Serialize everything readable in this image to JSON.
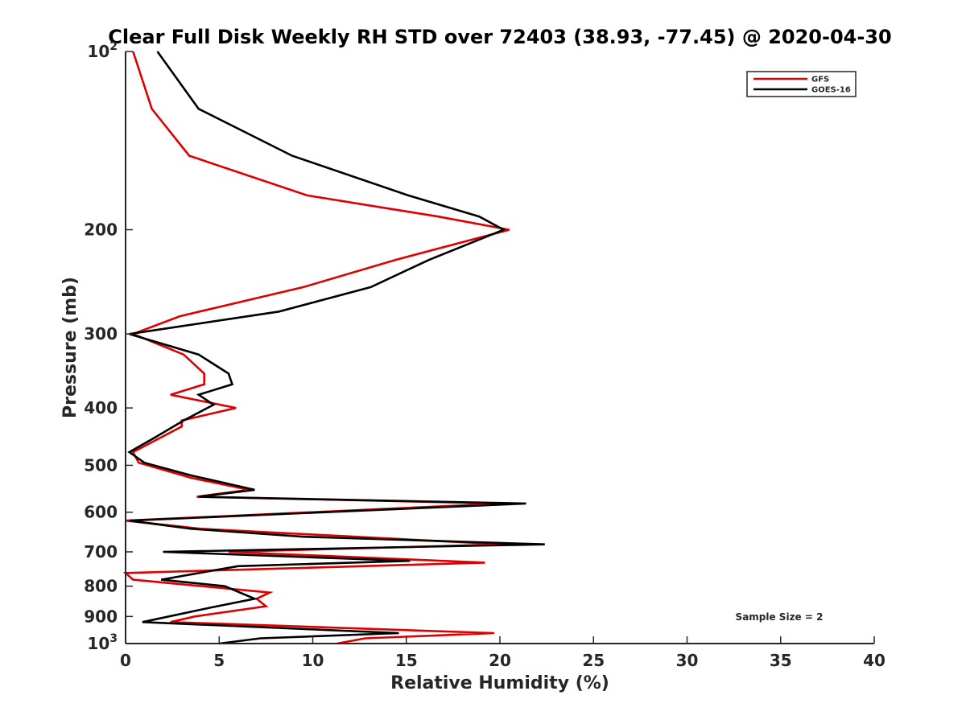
{
  "chart_data": {
    "type": "line",
    "title": "Clear Full Disk Weekly RH STD over 72403 (38.93, -77.45) @ 2020-04-30",
    "xlabel": "Relative Humidity (%)",
    "ylabel": "Pressure (mb)",
    "xlim": [
      0,
      40
    ],
    "ylim": [
      100,
      1000
    ],
    "yscale": "log",
    "y_reversed": true,
    "grid": false,
    "legend_position": "top-right",
    "x_ticks": [
      0,
      5,
      10,
      15,
      20,
      25,
      30,
      35,
      40
    ],
    "x_tick_labels": [
      "0",
      "5",
      "10",
      "15",
      "20",
      "25",
      "30",
      "35",
      "40"
    ],
    "y_ticks": [
      100,
      200,
      300,
      400,
      500,
      600,
      700,
      800,
      900,
      1000
    ],
    "y_tick_labels": [
      {
        "base": "10",
        "exp": "2"
      },
      {
        "base": "200",
        "exp": ""
      },
      {
        "base": "300",
        "exp": ""
      },
      {
        "base": "400",
        "exp": ""
      },
      {
        "base": "500",
        "exp": ""
      },
      {
        "base": "600",
        "exp": ""
      },
      {
        "base": "700",
        "exp": ""
      },
      {
        "base": "800",
        "exp": ""
      },
      {
        "base": "900",
        "exp": ""
      },
      {
        "base": "10",
        "exp": "3"
      }
    ],
    "annotation": "Sample Size = 2",
    "series": [
      {
        "name": "GFS",
        "color": "#dd0000",
        "points": [
          [
            0.4,
            100
          ],
          [
            1.4,
            125
          ],
          [
            3.4,
            150
          ],
          [
            9.7,
            175
          ],
          [
            16.7,
            190
          ],
          [
            20.5,
            200
          ],
          [
            14.4,
            225
          ],
          [
            9.5,
            250
          ],
          [
            2.9,
            280
          ],
          [
            0.4,
            300
          ],
          [
            3.1,
            325
          ],
          [
            4.2,
            350
          ],
          [
            4.2,
            365
          ],
          [
            2.4,
            380
          ],
          [
            5.9,
            400
          ],
          [
            3.0,
            420
          ],
          [
            3.0,
            430
          ],
          [
            0.4,
            475
          ],
          [
            0.7,
            495
          ],
          [
            3.5,
            525
          ],
          [
            6.6,
            550
          ],
          [
            3.8,
            565
          ],
          [
            20.2,
            580
          ],
          [
            0.0,
            620
          ],
          [
            4.0,
            640
          ],
          [
            20.2,
            680
          ],
          [
            5.5,
            700
          ],
          [
            19.2,
            730
          ],
          [
            0.0,
            760
          ],
          [
            0.4,
            780
          ],
          [
            7.7,
            820
          ],
          [
            7.0,
            840
          ],
          [
            7.5,
            865
          ],
          [
            3.7,
            900
          ],
          [
            2.4,
            920
          ],
          [
            19.7,
            960
          ],
          [
            12.8,
            980
          ],
          [
            11.3,
            1000
          ]
        ]
      },
      {
        "name": "GOES-16",
        "color": "#000000",
        "points": [
          [
            1.7,
            100
          ],
          [
            3.9,
            125
          ],
          [
            8.9,
            150
          ],
          [
            15.1,
            175
          ],
          [
            18.9,
            190
          ],
          [
            20.2,
            200
          ],
          [
            16.2,
            225
          ],
          [
            13.1,
            250
          ],
          [
            8.2,
            275
          ],
          [
            0.2,
            300
          ],
          [
            3.9,
            325
          ],
          [
            5.5,
            350
          ],
          [
            5.7,
            365
          ],
          [
            3.9,
            380
          ],
          [
            4.7,
            395
          ],
          [
            3.1,
            420
          ],
          [
            1.5,
            450
          ],
          [
            0.2,
            475
          ],
          [
            1.0,
            495
          ],
          [
            3.5,
            520
          ],
          [
            6.9,
            550
          ],
          [
            3.9,
            565
          ],
          [
            21.4,
            580
          ],
          [
            0.2,
            620
          ],
          [
            3.5,
            640
          ],
          [
            9.5,
            660
          ],
          [
            22.4,
            680
          ],
          [
            2.0,
            700
          ],
          [
            15.2,
            725
          ],
          [
            6.0,
            740
          ],
          [
            1.9,
            780
          ],
          [
            5.3,
            800
          ],
          [
            6.9,
            840
          ],
          [
            4.5,
            870
          ],
          [
            0.9,
            920
          ],
          [
            14.6,
            960
          ],
          [
            7.2,
            980
          ],
          [
            5.0,
            1000
          ]
        ]
      }
    ]
  }
}
